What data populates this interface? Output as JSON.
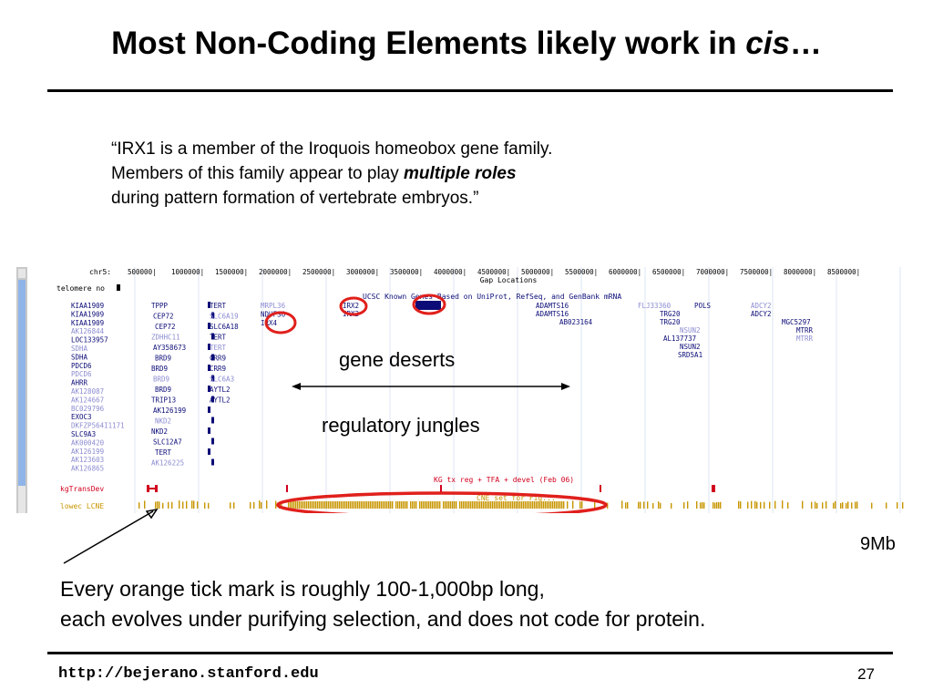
{
  "slide": {
    "title_main": "Most Non-Coding Elements likely work in ",
    "title_italic": "cis",
    "title_end": "…",
    "quote": {
      "line1": "“IRX1 is a member of the Iroquois homeobox gene family.",
      "line2_pre": "Members of this family appear to play ",
      "line2_bold": "multiple roles",
      "line3": "during pattern formation of vertebrate embryos.”"
    },
    "labels": {
      "gene_deserts": "gene deserts",
      "regulatory_jungles": "regulatory jungles",
      "scale_end": "9Mb"
    },
    "caption": {
      "line1": "Every orange tick mark is roughly 100-1,000bp long,",
      "line2": "each evolves under purifying selection, and does not code for protein."
    },
    "footer": {
      "url": "http://bejerano.stanford.edu",
      "page": "27"
    },
    "colors": {
      "highlight": "#e0201c",
      "track_orange": "#c89600",
      "gene_blue": "#0c0c78",
      "gene_light": "#8c8cd2",
      "kg_red": "#d2001e"
    }
  },
  "browser": {
    "chrom_label": "chr5:",
    "ruler": [
      "500000|",
      "1000000|",
      "1500000|",
      "2000000|",
      "2500000|",
      "3000000|",
      "3500000|",
      "4000000|",
      "4500000|",
      "5000000|",
      "5500000|",
      "6000000|",
      "6500000|",
      "7000000|",
      "7500000|",
      "8000000|",
      "8500000|"
    ],
    "gap_label": "Gap Locations",
    "telomere": "telomere no",
    "track_title": "UCSC Known Genes Based on UniProt, RefSeq, and GenBank mRNA",
    "left_labels": [
      "KIAA1909",
      "KIAA1909",
      "KIAA1909",
      "AK126844",
      "LOC133957",
      "SDHA",
      "SDHA",
      "PDCD6",
      "PDCD6",
      "AHRR",
      "AK128087",
      "AK124667",
      "BC029796",
      "EXOC3",
      "DKFZP564I1171",
      "SLC9A3",
      "AK000420",
      "AK126199",
      "AK123603",
      "AK126865"
    ],
    "genes_a": [
      "TPPP",
      "CEP72",
      "CEP72",
      "ZDHHC11",
      "AY358673",
      "BRD9",
      "BRD9",
      "BRD9",
      "BRD9",
      "TRIP13",
      "AK126199",
      "NKD2",
      "NKD2",
      "SLC12A7",
      "TERT",
      "AK126225"
    ],
    "genes_b": [
      "TERT",
      "SLC6A19",
      "SLC6A18",
      "TERT",
      "TERT",
      "CRR9",
      "CRR9",
      "SLC6A3",
      "AYTL2",
      "AYTL2",
      "MRPL36",
      "NDUFS6",
      "IRX4"
    ],
    "genes_c": [
      "IRX2",
      "IRX2",
      "IRX1",
      "ADAMTS16",
      "ADAMTS16",
      "AB023164",
      "FLJ33360",
      "POLS",
      "TRG20",
      "TRG20",
      "NSUN2",
      "AL137737",
      "NSUN2",
      "SRD5A1",
      "ADCY2",
      "ADCY2",
      "MGC5297",
      "MTRR",
      "MTRR"
    ],
    "kg_label": "kgTransDev",
    "kg_track_title": "KG tx reg + TFA + devel (Feb 06)",
    "lcne_label": "lowec LCNE",
    "lcne_title": "CNE set for Fig..."
  }
}
